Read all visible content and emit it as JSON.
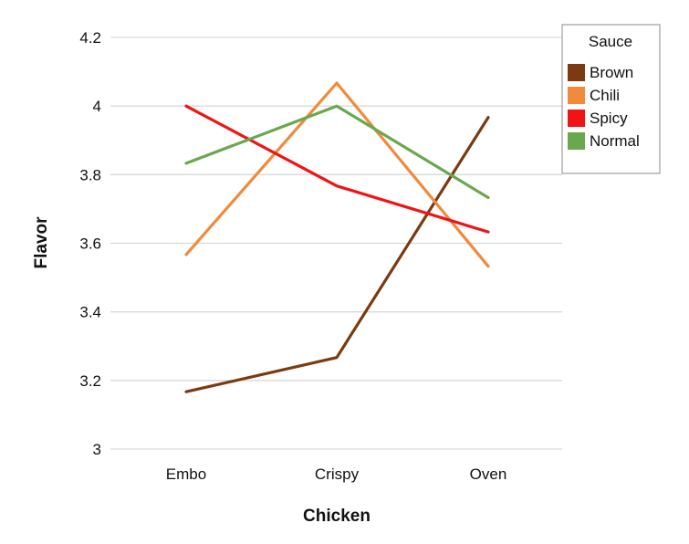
{
  "chart_data": {
    "type": "line",
    "xlabel": "Chicken",
    "ylabel": "Flavor",
    "categories": [
      "Embo",
      "Crispy",
      "Oven"
    ],
    "ylim": [
      3,
      4.2
    ],
    "yticks": [
      "3",
      "3.2",
      "3.4",
      "3.6",
      "3.8",
      "4",
      "4.2"
    ],
    "grid": true,
    "legend": {
      "title": "Sauce",
      "placement": "top-right"
    },
    "series": [
      {
        "name": "Brown",
        "color": "#7b3a12",
        "values": [
          3.167,
          3.267,
          3.967
        ]
      },
      {
        "name": "Chili",
        "color": "#f08a3c",
        "values": [
          3.567,
          4.067,
          3.533
        ]
      },
      {
        "name": "Spicy",
        "color": "#f01414",
        "values": [
          4.0,
          3.767,
          3.633
        ]
      },
      {
        "name": "Normal",
        "color": "#6aa84f",
        "values": [
          3.833,
          4.0,
          3.733
        ]
      }
    ]
  }
}
